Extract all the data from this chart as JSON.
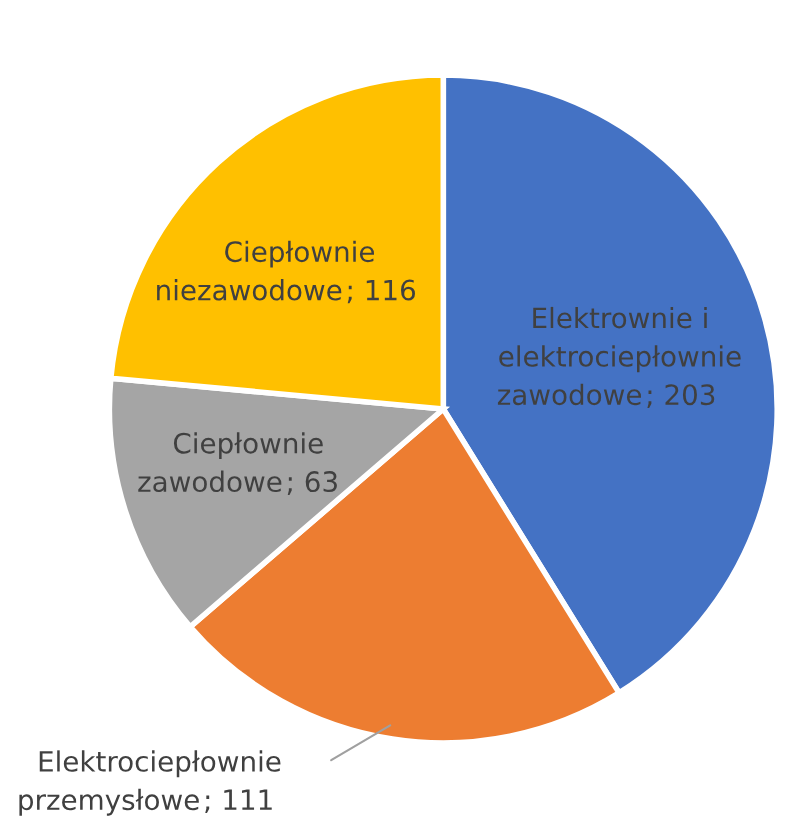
{
  "chart_data": {
    "type": "pie",
    "categories": [
      "Elektrownie i\nelektrociepłownie\nzawodowe",
      "Elektrociepłownie\nprzemysłowe",
      "Ciepłownie\nzawodowe",
      "Ciepłownie\nniezawodowe"
    ],
    "values": [
      203,
      111,
      63,
      116
    ],
    "colors": [
      "#4472c4",
      "#ed7d31",
      "#a5a5a5",
      "#ffc000"
    ],
    "value_labels": [
      "; 203",
      "; 111",
      "; 63",
      "; 116"
    ]
  }
}
